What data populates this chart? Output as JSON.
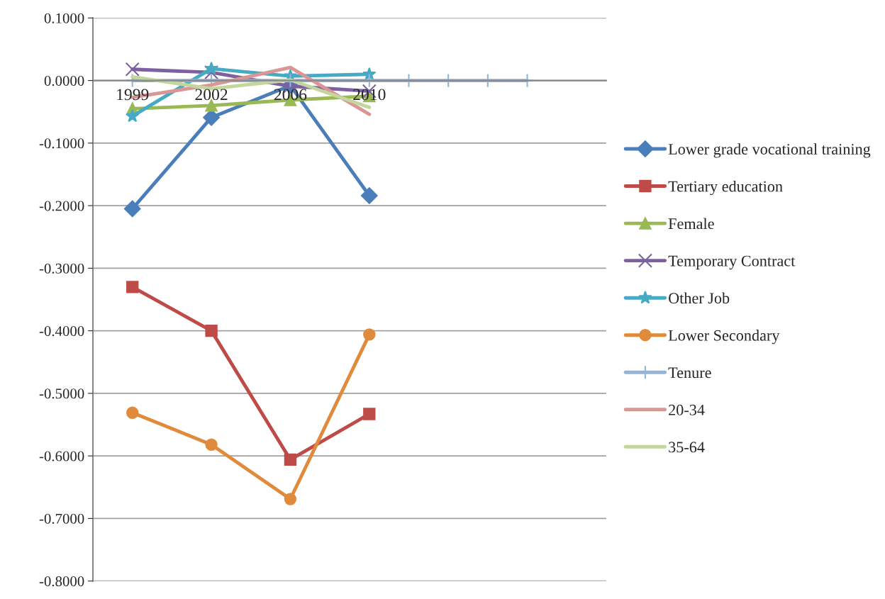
{
  "chart_data": {
    "type": "line",
    "categories": [
      "1999",
      null,
      "2002",
      null,
      "2006",
      null,
      "2010",
      null,
      null,
      null,
      null
    ],
    "series": [
      {
        "name": "Lower grade vocational training",
        "color": "#4a7ebb",
        "marker": "diamond",
        "values": [
          -0.205,
          null,
          -0.059,
          null,
          -0.008,
          null,
          -0.184,
          null,
          null,
          null,
          null
        ]
      },
      {
        "name": "Tertiary education",
        "color": "#be4b48",
        "marker": "square",
        "values": [
          -0.33,
          null,
          -0.4,
          null,
          -0.606,
          null,
          -0.533,
          null,
          null,
          null,
          null
        ]
      },
      {
        "name": "Female",
        "color": "#98b954",
        "marker": "triangle",
        "values": [
          -0.045,
          null,
          -0.04,
          null,
          -0.031,
          null,
          -0.025,
          null,
          null,
          null,
          null
        ]
      },
      {
        "name": "Temporary Contract",
        "color": "#7d60a0",
        "marker": "cross",
        "values": [
          0.018,
          null,
          0.013,
          null,
          -0.009,
          null,
          -0.017,
          null,
          null,
          null,
          null
        ]
      },
      {
        "name": "Other Job",
        "color": "#46aac5",
        "marker": "star",
        "values": [
          -0.057,
          null,
          0.019,
          null,
          0.007,
          null,
          0.01,
          null,
          null,
          null,
          null
        ]
      },
      {
        "name": "Lower Secondary",
        "color": "#e08a3c",
        "marker": "circle",
        "values": [
          -0.531,
          null,
          -0.582,
          null,
          -0.669,
          null,
          -0.406,
          null,
          null,
          null,
          null
        ]
      },
      {
        "name": "Tenure",
        "color": "#95b3d7",
        "marker": "plus",
        "values": [
          0,
          null,
          0,
          null,
          0,
          null,
          0,
          0,
          0,
          0,
          0
        ]
      },
      {
        "name": "20-34",
        "color": "#d99694",
        "marker": "none",
        "values": [
          -0.027,
          null,
          -0.007,
          null,
          0.021,
          null,
          -0.054,
          null,
          null,
          null,
          null
        ]
      },
      {
        "name": "35-64",
        "color": "#c3d69b",
        "marker": "none",
        "values": [
          0.006,
          null,
          -0.013,
          null,
          0.001,
          null,
          -0.043,
          null,
          null,
          null,
          null
        ]
      }
    ],
    "ylim": [
      -0.8,
      0.1
    ],
    "yticks": [
      {
        "value": -0.8,
        "label": "-0.8000"
      },
      {
        "value": -0.7,
        "label": "-0.7000"
      },
      {
        "value": -0.6,
        "label": "-0.6000"
      },
      {
        "value": -0.5,
        "label": "-0.5000"
      },
      {
        "value": -0.4,
        "label": "-0.4000"
      },
      {
        "value": -0.3,
        "label": "-0.3000"
      },
      {
        "value": -0.2,
        "label": "-0.2000"
      },
      {
        "value": -0.1,
        "label": "-0.1000"
      },
      {
        "value": 0,
        "label": "0.0000"
      },
      {
        "value": 0.1,
        "label": "0.1000"
      }
    ],
    "grid": "y",
    "legend": "right"
  }
}
